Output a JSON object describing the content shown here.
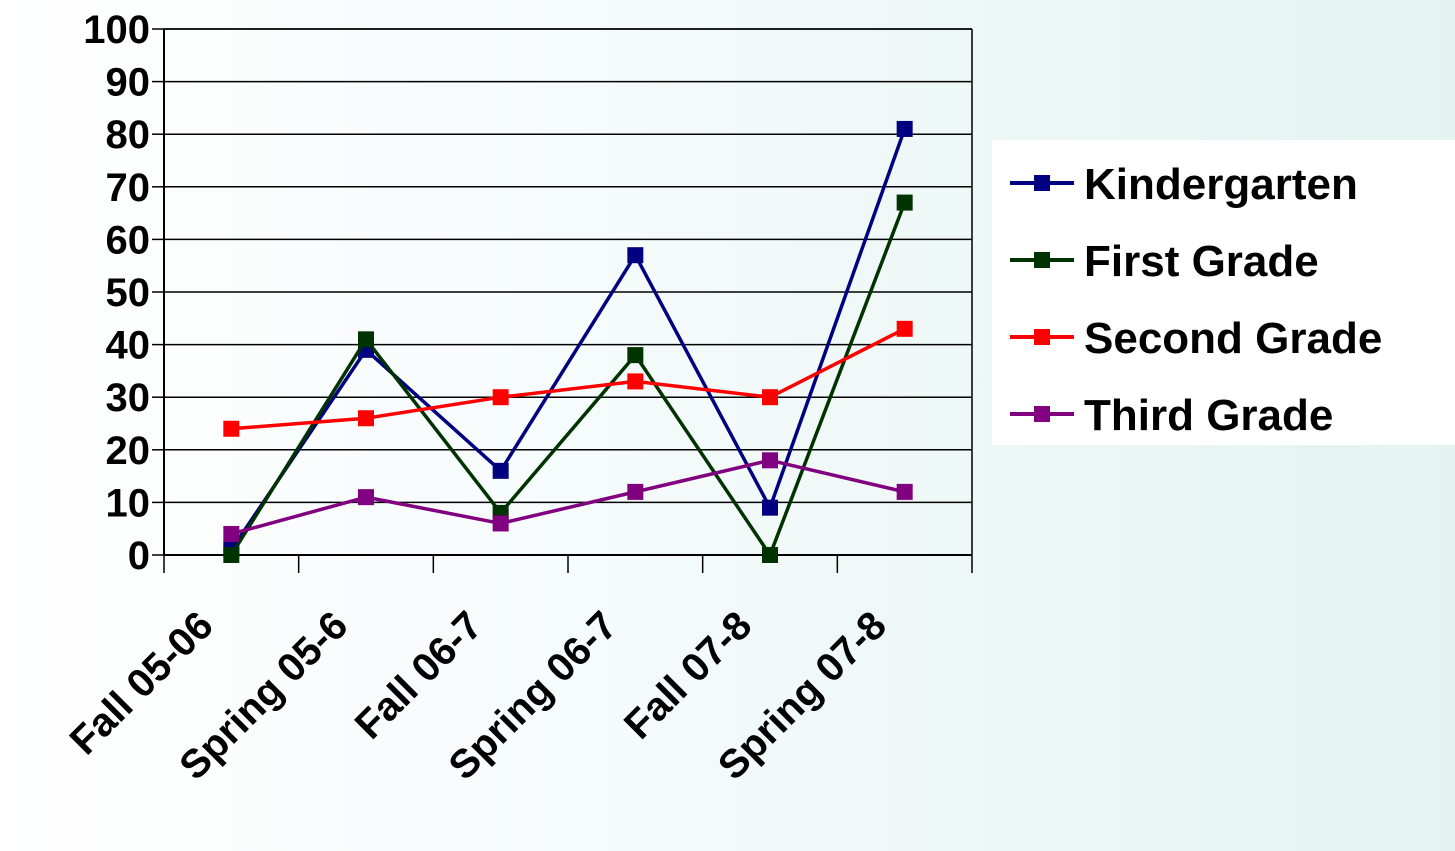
{
  "chart_data": {
    "type": "line",
    "title": "",
    "xlabel": "",
    "ylabel": "",
    "categories": [
      "Fall 05-06",
      "Spring 05-6",
      "Fall 06-7",
      "Spring 06-7",
      "Fall 07-8",
      "Spring 07-8"
    ],
    "ylim": [
      0,
      100
    ],
    "yticks": [
      0,
      10,
      20,
      30,
      40,
      50,
      60,
      70,
      80,
      90,
      100
    ],
    "grid": true,
    "legend_position": "right",
    "series": [
      {
        "name": "Kindergarten",
        "color": "#000080",
        "values": [
          1,
          39,
          16,
          57,
          9,
          81
        ]
      },
      {
        "name": "First Grade",
        "color": "#003300",
        "values": [
          0,
          41,
          8,
          38,
          0,
          67
        ]
      },
      {
        "name": "Second Grade",
        "color": "#ff0000",
        "values": [
          24,
          26,
          30,
          33,
          30,
          43
        ]
      },
      {
        "name": "Third Grade",
        "color": "#800080",
        "values": [
          4,
          11,
          6,
          12,
          18,
          12
        ]
      }
    ]
  }
}
